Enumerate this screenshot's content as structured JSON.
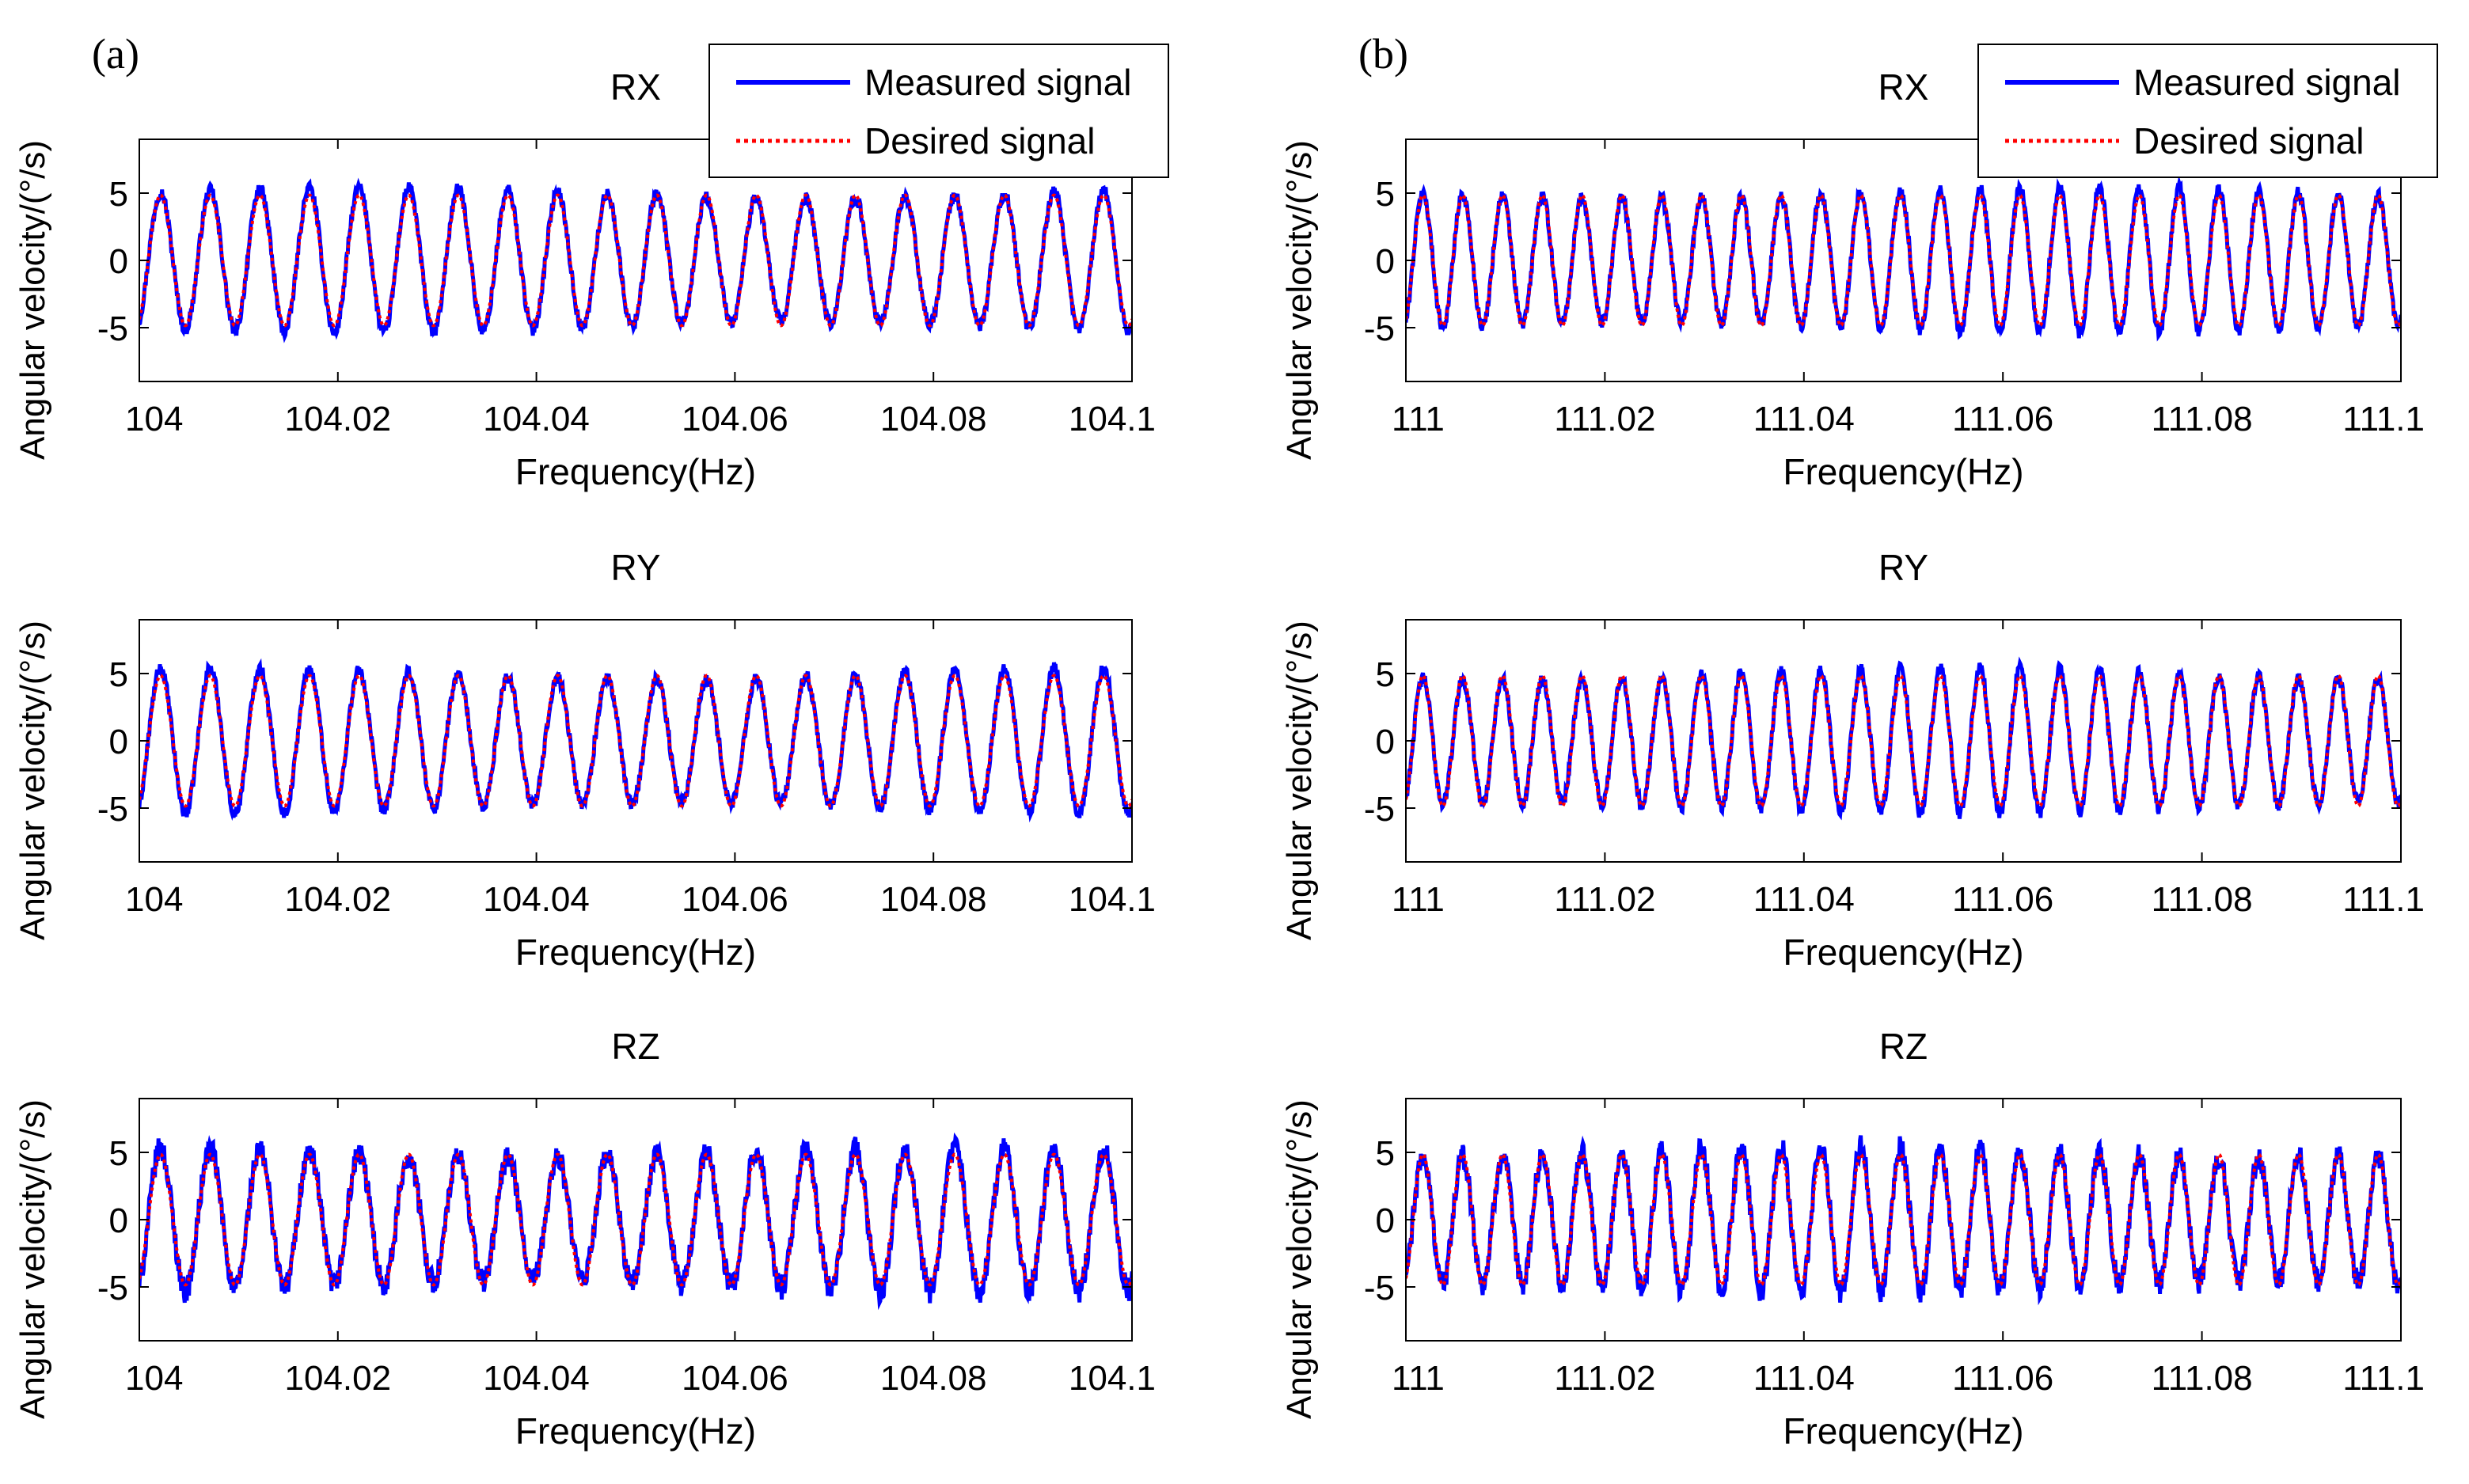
{
  "chart_data": [
    {
      "type": "line",
      "panel_label": "(a)",
      "title": "RX",
      "xlabel": "Frequency(Hz)",
      "ylabel": "Angular velocity/(°/s)",
      "xlim": [
        104,
        104.1
      ],
      "ylim": [
        -9,
        9
      ],
      "xticks": [
        "104",
        "104.02",
        "104.04",
        "104.06",
        "104.08",
        "104.1"
      ],
      "yticks": [
        "5",
        "0",
        "-5"
      ],
      "cycles": 20,
      "amplitude": 5,
      "legend": {
        "position": "top-right",
        "entries": [
          "Measured signal",
          "Desired signal"
        ]
      },
      "series": [
        {
          "name": "Measured signal",
          "color": "#0000ff",
          "style": "solid"
        },
        {
          "name": "Desired signal",
          "color": "#ff0000",
          "style": "dotted"
        }
      ]
    },
    {
      "type": "line",
      "panel_label": "",
      "title": "RY",
      "xlabel": "Frequency(Hz)",
      "ylabel": "Angular velocity/(°/s)",
      "xlim": [
        104,
        104.1
      ],
      "ylim": [
        -9,
        9
      ],
      "xticks": [
        "104",
        "104.02",
        "104.04",
        "104.06",
        "104.08",
        "104.1"
      ],
      "yticks": [
        "5",
        "0",
        "-5"
      ],
      "cycles": 20,
      "amplitude": 5,
      "series": [
        {
          "name": "Measured signal",
          "color": "#0000ff",
          "style": "solid"
        },
        {
          "name": "Desired signal",
          "color": "#ff0000",
          "style": "dotted"
        }
      ]
    },
    {
      "type": "line",
      "panel_label": "",
      "title": "RZ",
      "xlabel": "Frequency(Hz)",
      "ylabel": "Angular velocity/(°/s)",
      "xlim": [
        104,
        104.1
      ],
      "ylim": [
        -9,
        9
      ],
      "xticks": [
        "104",
        "104.02",
        "104.04",
        "104.06",
        "104.08",
        "104.1"
      ],
      "yticks": [
        "5",
        "0",
        "-5"
      ],
      "cycles": 20,
      "amplitude": 5,
      "series": [
        {
          "name": "Measured signal",
          "color": "#0000ff",
          "style": "solid"
        },
        {
          "name": "Desired signal",
          "color": "#ff0000",
          "style": "dotted"
        }
      ]
    },
    {
      "type": "line",
      "panel_label": "(b)",
      "title": "RX",
      "xlabel": "Frequency(Hz)",
      "ylabel": "Angular velocity/(°/s)",
      "xlim": [
        111,
        111.1
      ],
      "ylim": [
        -9,
        9
      ],
      "xticks": [
        "111",
        "111.02",
        "111.04",
        "111.06",
        "111.08",
        "111.1"
      ],
      "yticks": [
        "5",
        "0",
        "-5"
      ],
      "cycles": 25,
      "amplitude": 5,
      "legend": {
        "position": "top-right",
        "entries": [
          "Measured signal",
          "Desired signal"
        ]
      },
      "series": [
        {
          "name": "Measured signal",
          "color": "#0000ff",
          "style": "solid"
        },
        {
          "name": "Desired signal",
          "color": "#ff0000",
          "style": "dotted"
        }
      ]
    },
    {
      "type": "line",
      "panel_label": "",
      "title": "RY",
      "xlabel": "Frequency(Hz)",
      "ylabel": "Angular velocity/(°/s)",
      "xlim": [
        111,
        111.1
      ],
      "ylim": [
        -9,
        9
      ],
      "xticks": [
        "111",
        "111.02",
        "111.04",
        "111.06",
        "111.08",
        "111.1"
      ],
      "yticks": [
        "5",
        "0",
        "-5"
      ],
      "cycles": 25,
      "amplitude": 5,
      "series": [
        {
          "name": "Measured signal",
          "color": "#0000ff",
          "style": "solid"
        },
        {
          "name": "Desired signal",
          "color": "#ff0000",
          "style": "dotted"
        }
      ]
    },
    {
      "type": "line",
      "panel_label": "",
      "title": "RZ",
      "xlabel": "Frequency(Hz)",
      "ylabel": "Angular velocity/(°/s)",
      "xlim": [
        111,
        111.1
      ],
      "ylim": [
        -9,
        9
      ],
      "xticks": [
        "111",
        "111.02",
        "111.04",
        "111.06",
        "111.08",
        "111.1"
      ],
      "yticks": [
        "5",
        "0",
        "-5"
      ],
      "cycles": 25,
      "amplitude": 5,
      "series": [
        {
          "name": "Measured signal",
          "color": "#0000ff",
          "style": "solid"
        },
        {
          "name": "Desired signal",
          "color": "#ff0000",
          "style": "dotted"
        }
      ]
    }
  ]
}
